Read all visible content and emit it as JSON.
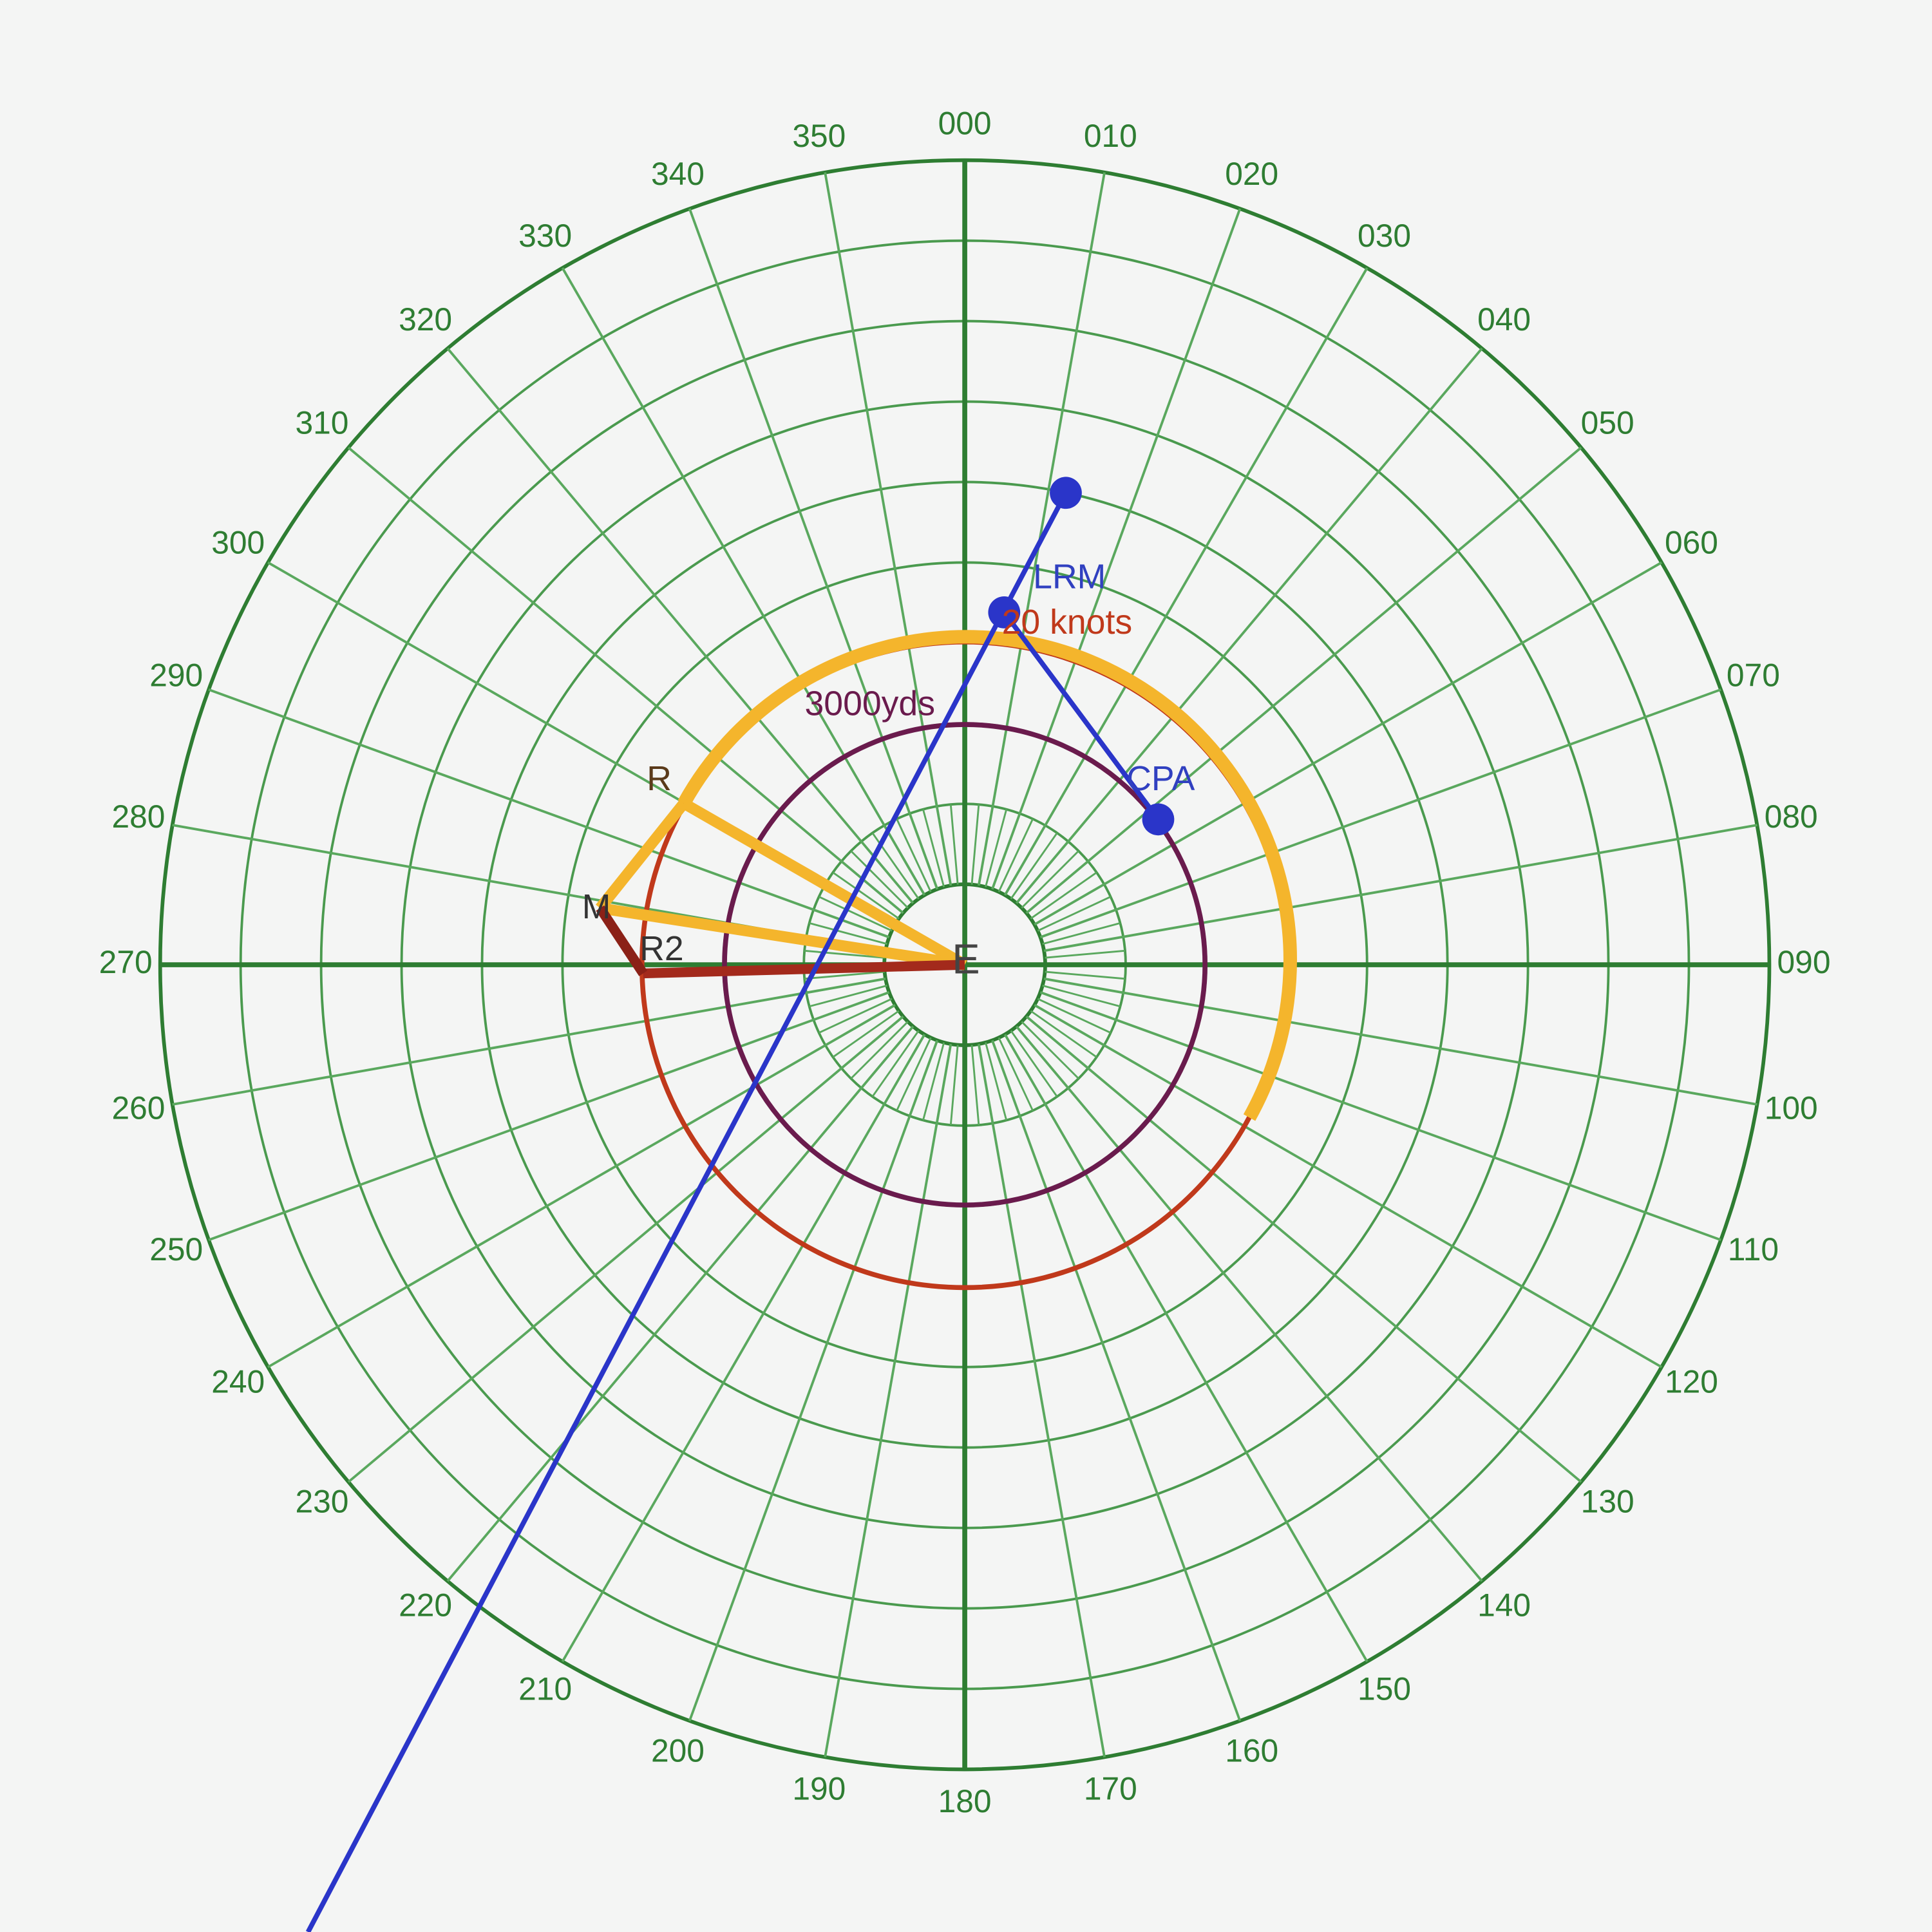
{
  "bearings": [
    "000",
    "010",
    "020",
    "030",
    "040",
    "050",
    "060",
    "070",
    "080",
    "090",
    "100",
    "110",
    "120",
    "130",
    "140",
    "150",
    "160",
    "170",
    "180",
    "190",
    "200",
    "210",
    "220",
    "230",
    "240",
    "250",
    "260",
    "270",
    "280",
    "290",
    "300",
    "310",
    "320",
    "330",
    "340",
    "350"
  ],
  "labels": {
    "lrm": "LRM",
    "speed": "20 knots",
    "range": "3000yds",
    "cpa": "CPA",
    "r": "R",
    "m": "M",
    "r2": "R2",
    "e": "E"
  }
}
